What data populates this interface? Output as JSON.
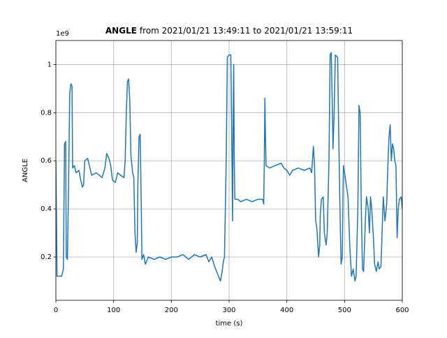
{
  "chart_data": {
    "type": "line",
    "title_parts": [
      "ANGLE",
      "from 2021/01/21 13:49:11 to 2021/01/21 13:59:11"
    ],
    "xlabel": "time (s)",
    "ylabel": "ANGLE",
    "offset_label": "1e9",
    "color": "#1f77b4",
    "grid": true,
    "xlim": [
      0,
      600
    ],
    "xticks": [
      0,
      100,
      200,
      300,
      400,
      500,
      600
    ],
    "ylim": [
      0.02,
      1.1
    ],
    "yticks": [
      0.2,
      0.4,
      0.6,
      0.8,
      1.0
    ],
    "x": [
      0,
      2,
      10,
      13,
      15,
      17,
      18,
      20,
      22,
      24,
      26,
      28,
      29,
      32,
      35,
      40,
      43,
      46,
      48,
      50,
      55,
      58,
      62,
      70,
      80,
      85,
      88,
      92,
      95,
      98,
      103,
      107,
      112,
      118,
      120,
      122,
      124,
      126,
      128,
      130,
      133,
      135,
      137,
      139,
      141,
      142,
      144,
      146,
      148,
      149,
      152,
      155,
      160,
      170,
      180,
      190,
      200,
      210,
      220,
      230,
      240,
      250,
      260,
      265,
      270,
      275,
      280,
      285,
      288,
      290,
      292,
      295,
      297,
      300,
      303,
      305,
      306,
      307,
      308,
      309,
      310,
      315,
      320,
      330,
      340,
      350,
      358,
      360,
      361,
      362,
      363,
      364,
      370,
      380,
      390,
      395,
      400,
      405,
      410,
      420,
      430,
      440,
      443,
      446,
      448,
      450,
      452,
      455,
      457,
      458,
      460,
      463,
      465,
      468,
      470,
      473,
      475,
      477,
      479,
      480,
      482,
      484,
      488,
      490,
      492,
      494,
      496,
      498,
      500,
      503,
      506,
      509,
      512,
      515,
      518,
      520,
      523,
      525,
      527,
      529,
      531,
      533,
      536,
      538,
      541,
      543,
      545,
      547,
      550,
      552,
      555,
      558,
      560,
      563,
      565,
      567,
      570,
      573,
      575,
      577,
      579,
      581,
      583,
      585,
      587,
      589,
      591,
      593,
      595,
      598,
      600
    ],
    "values": [
      0.6,
      0.12,
      0.12,
      0.15,
      0.67,
      0.68,
      0.2,
      0.19,
      0.5,
      0.88,
      0.92,
      0.91,
      0.57,
      0.58,
      0.55,
      0.56,
      0.52,
      0.49,
      0.5,
      0.6,
      0.61,
      0.58,
      0.54,
      0.55,
      0.53,
      0.57,
      0.63,
      0.61,
      0.58,
      0.52,
      0.51,
      0.55,
      0.54,
      0.53,
      0.6,
      0.8,
      0.93,
      0.94,
      0.85,
      0.62,
      0.55,
      0.53,
      0.3,
      0.22,
      0.26,
      0.5,
      0.7,
      0.71,
      0.4,
      0.19,
      0.21,
      0.17,
      0.2,
      0.19,
      0.2,
      0.19,
      0.2,
      0.2,
      0.21,
      0.19,
      0.21,
      0.2,
      0.21,
      0.18,
      0.2,
      0.16,
      0.13,
      0.1,
      0.14,
      0.18,
      0.2,
      0.6,
      1.03,
      1.04,
      1.04,
      0.6,
      0.35,
      0.75,
      1.0,
      0.6,
      0.44,
      0.44,
      0.43,
      0.44,
      0.43,
      0.44,
      0.44,
      0.42,
      0.6,
      0.86,
      0.7,
      0.58,
      0.57,
      0.58,
      0.59,
      0.57,
      0.56,
      0.54,
      0.56,
      0.57,
      0.56,
      0.57,
      0.55,
      0.66,
      0.58,
      0.35,
      0.32,
      0.2,
      0.25,
      0.38,
      0.44,
      0.45,
      0.3,
      0.25,
      0.3,
      0.6,
      1.04,
      1.05,
      0.8,
      0.65,
      0.8,
      1.04,
      1.03,
      0.7,
      0.4,
      0.17,
      0.2,
      0.58,
      0.55,
      0.5,
      0.45,
      0.25,
      0.12,
      0.15,
      0.1,
      0.12,
      0.4,
      0.83,
      0.8,
      0.4,
      0.15,
      0.14,
      0.35,
      0.45,
      0.4,
      0.3,
      0.45,
      0.4,
      0.28,
      0.17,
      0.14,
      0.18,
      0.15,
      0.16,
      0.3,
      0.45,
      0.35,
      0.42,
      0.58,
      0.7,
      0.75,
      0.6,
      0.67,
      0.65,
      0.6,
      0.58,
      0.28,
      0.4,
      0.44,
      0.45,
      0.4
    ]
  }
}
